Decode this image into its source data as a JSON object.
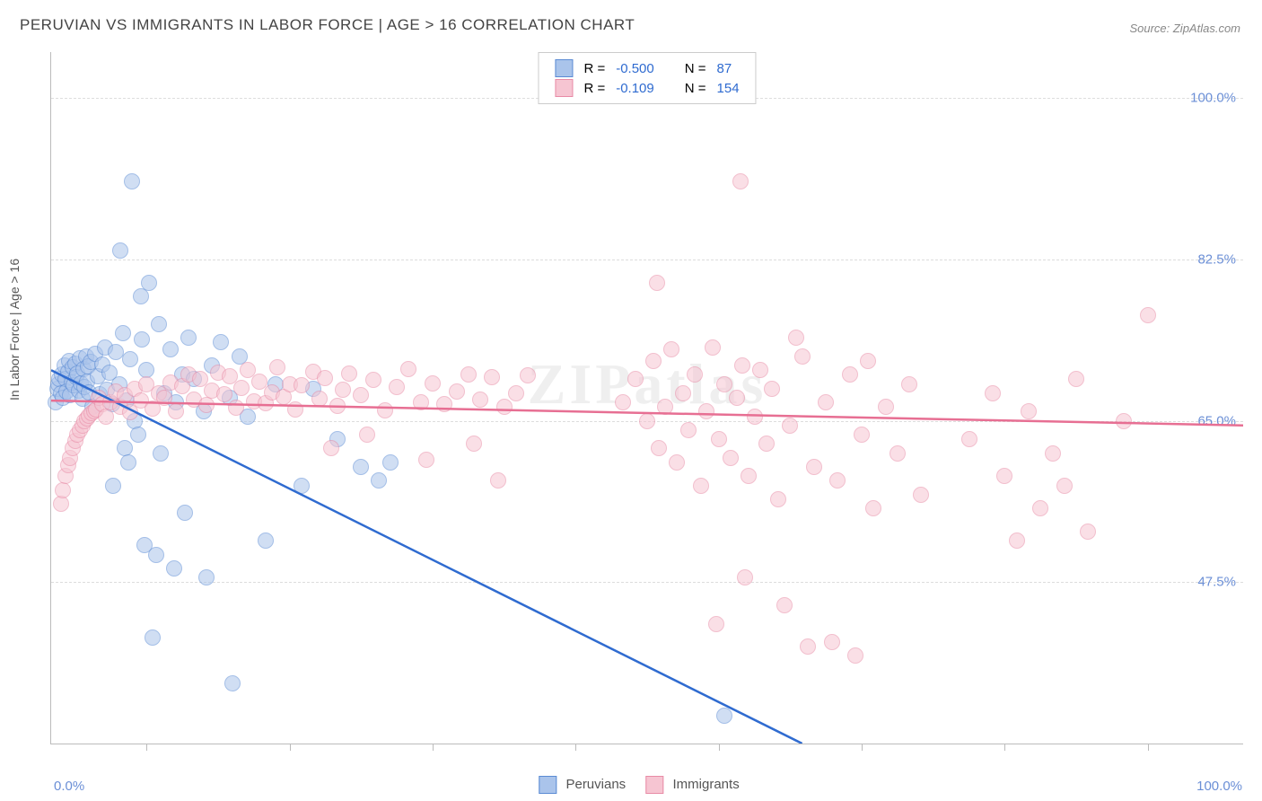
{
  "title": "PERUVIAN VS IMMIGRANTS IN LABOR FORCE | AGE > 16 CORRELATION CHART",
  "source": "Source: ZipAtlas.com",
  "watermark": "ZIPatlas",
  "yaxis_label": "In Labor Force | Age > 16",
  "xaxis": {
    "min_label": "0.0%",
    "max_label": "100.0%"
  },
  "chart": {
    "type": "scatter",
    "xlim": [
      0,
      100
    ],
    "ylim": [
      30,
      105
    ],
    "ytick_values": [
      47.5,
      65.0,
      82.5,
      100.0
    ],
    "ytick_labels": [
      "47.5%",
      "65.0%",
      "82.5%",
      "100.0%"
    ],
    "xtick_values": [
      8,
      20,
      32,
      44,
      56,
      68,
      80,
      92
    ],
    "background_color": "#ffffff",
    "grid_color": "#dddddd",
    "axis_color": "#bbbbbb",
    "tick_label_color": "#6b8fd6",
    "point_radius": 9,
    "point_opacity": 0.55
  },
  "series": [
    {
      "name": "Peruvians",
      "fill_color": "#aac4eb",
      "stroke_color": "#5b8bd4",
      "line_color": "#2f6bd0",
      "R": "-0.500",
      "N": "87",
      "trend": {
        "x1": 0,
        "y1": 70.5,
        "x2": 63,
        "y2": 30
      },
      "points": [
        [
          0.4,
          67
        ],
        [
          0.5,
          68.5
        ],
        [
          0.6,
          69
        ],
        [
          0.7,
          69.5
        ],
        [
          0.8,
          68
        ],
        [
          0.9,
          70
        ],
        [
          1.0,
          67.5
        ],
        [
          1.1,
          71
        ],
        [
          1.2,
          69.5
        ],
        [
          1.3,
          68.2
        ],
        [
          1.4,
          70.3
        ],
        [
          1.5,
          71.5
        ],
        [
          1.6,
          67.8
        ],
        [
          1.7,
          69.2
        ],
        [
          1.8,
          70.8
        ],
        [
          1.9,
          68.9
        ],
        [
          2.0,
          71.2
        ],
        [
          2.1,
          69.7
        ],
        [
          2.2,
          70.1
        ],
        [
          2.3,
          68.3
        ],
        [
          2.4,
          71.8
        ],
        [
          2.5,
          69.1
        ],
        [
          2.6,
          67.4
        ],
        [
          2.7,
          70.6
        ],
        [
          2.8,
          68.7
        ],
        [
          2.9,
          72.0
        ],
        [
          3.0,
          69.3
        ],
        [
          3.1,
          70.9
        ],
        [
          3.2,
          68.1
        ],
        [
          3.3,
          71.4
        ],
        [
          3.5,
          66.5
        ],
        [
          3.7,
          72.3
        ],
        [
          3.9,
          69.8
        ],
        [
          4.1,
          67.9
        ],
        [
          4.3,
          71.1
        ],
        [
          4.5,
          73.0
        ],
        [
          4.7,
          68.4
        ],
        [
          4.9,
          70.2
        ],
        [
          5.1,
          66.8
        ],
        [
          5.4,
          72.5
        ],
        [
          5.7,
          69.0
        ],
        [
          6.0,
          74.5
        ],
        [
          6.3,
          67.2
        ],
        [
          6.6,
          71.7
        ],
        [
          7.0,
          65.0
        ],
        [
          7.3,
          63.5
        ],
        [
          7.6,
          73.8
        ],
        [
          8.0,
          70.5
        ],
        [
          6.2,
          62.0
        ],
        [
          6.5,
          60.5
        ],
        [
          7.5,
          78.5
        ],
        [
          8.2,
          80.0
        ],
        [
          5.8,
          83.5
        ],
        [
          6.8,
          91.0
        ],
        [
          9.0,
          75.5
        ],
        [
          9.5,
          68.0
        ],
        [
          5.2,
          58.0
        ],
        [
          9.2,
          61.5
        ],
        [
          10.0,
          72.8
        ],
        [
          10.5,
          67.0
        ],
        [
          11.0,
          70.0
        ],
        [
          11.5,
          74.0
        ],
        [
          12.0,
          69.5
        ],
        [
          12.8,
          66.0
        ],
        [
          13.5,
          71.0
        ],
        [
          14.2,
          73.5
        ],
        [
          15.0,
          67.5
        ],
        [
          15.8,
          72.0
        ],
        [
          16.5,
          65.5
        ],
        [
          7.8,
          51.5
        ],
        [
          8.8,
          50.5
        ],
        [
          10.3,
          49.0
        ],
        [
          11.2,
          55.0
        ],
        [
          13.0,
          48.0
        ],
        [
          8.5,
          41.5
        ],
        [
          15.2,
          36.5
        ],
        [
          18.0,
          52.0
        ],
        [
          18.8,
          69.0
        ],
        [
          21.0,
          58.0
        ],
        [
          22.0,
          68.5
        ],
        [
          24.0,
          63.0
        ],
        [
          26.0,
          60.0
        ],
        [
          27.5,
          58.5
        ],
        [
          28.5,
          60.5
        ],
        [
          56.5,
          33.0
        ]
      ]
    },
    {
      "name": "Immigrants",
      "fill_color": "#f6c5d2",
      "stroke_color": "#e88ba6",
      "line_color": "#e76f93",
      "R": "-0.109",
      "N": "154",
      "trend": {
        "x1": 0,
        "y1": 67.2,
        "x2": 100,
        "y2": 64.5
      },
      "points": [
        [
          0.8,
          56.0
        ],
        [
          1.0,
          57.5
        ],
        [
          1.2,
          59.0
        ],
        [
          1.4,
          60.2
        ],
        [
          1.6,
          61.0
        ],
        [
          1.8,
          62.0
        ],
        [
          2.0,
          62.8
        ],
        [
          2.2,
          63.5
        ],
        [
          2.4,
          64.0
        ],
        [
          2.6,
          64.5
        ],
        [
          2.8,
          65.0
        ],
        [
          3.0,
          65.3
        ],
        [
          3.2,
          65.6
        ],
        [
          3.4,
          65.8
        ],
        [
          3.6,
          66.0
        ],
        [
          3.8,
          66.2
        ],
        [
          4.0,
          67.5
        ],
        [
          4.3,
          66.8
        ],
        [
          4.6,
          65.5
        ],
        [
          5.0,
          67.0
        ],
        [
          5.4,
          68.2
        ],
        [
          5.8,
          66.5
        ],
        [
          6.2,
          67.8
        ],
        [
          6.6,
          65.9
        ],
        [
          7.0,
          68.5
        ],
        [
          7.5,
          67.2
        ],
        [
          8.0,
          69.0
        ],
        [
          8.5,
          66.3
        ],
        [
          9.0,
          68.0
        ],
        [
          9.5,
          67.5
        ],
        [
          10.0,
          69.2
        ],
        [
          10.5,
          66.0
        ],
        [
          11.0,
          68.8
        ],
        [
          11.5,
          70.0
        ],
        [
          12.0,
          67.3
        ],
        [
          12.5,
          69.5
        ],
        [
          13.0,
          66.7
        ],
        [
          13.5,
          68.3
        ],
        [
          14.0,
          70.2
        ],
        [
          14.5,
          67.9
        ],
        [
          15.0,
          69.8
        ],
        [
          15.5,
          66.4
        ],
        [
          16.0,
          68.6
        ],
        [
          16.5,
          70.5
        ],
        [
          17.0,
          67.1
        ],
        [
          17.5,
          69.3
        ],
        [
          18.0,
          66.9
        ],
        [
          18.5,
          68.1
        ],
        [
          19.0,
          70.8
        ],
        [
          19.5,
          67.6
        ],
        [
          20.0,
          69.0
        ],
        [
          20.5,
          66.2
        ],
        [
          21.0,
          68.9
        ],
        [
          22.0,
          70.3
        ],
        [
          22.5,
          67.4
        ],
        [
          23.0,
          69.6
        ],
        [
          24.0,
          66.6
        ],
        [
          24.5,
          68.4
        ],
        [
          25.0,
          70.1
        ],
        [
          26.0,
          67.8
        ],
        [
          27.0,
          69.4
        ],
        [
          28.0,
          66.1
        ],
        [
          29.0,
          68.7
        ],
        [
          30.0,
          70.6
        ],
        [
          31.0,
          67.0
        ],
        [
          32.0,
          69.1
        ],
        [
          33.0,
          66.8
        ],
        [
          34.0,
          68.2
        ],
        [
          35.0,
          70.0
        ],
        [
          36.0,
          67.3
        ],
        [
          37.0,
          69.7
        ],
        [
          38.0,
          66.5
        ],
        [
          39.0,
          68.0
        ],
        [
          40.0,
          69.9
        ],
        [
          23.5,
          62.0
        ],
        [
          26.5,
          63.5
        ],
        [
          31.5,
          60.8
        ],
        [
          35.5,
          62.5
        ],
        [
          37.5,
          58.5
        ],
        [
          48.0,
          67.0
        ],
        [
          49.0,
          69.5
        ],
        [
          50.0,
          65.0
        ],
        [
          50.5,
          71.5
        ],
        [
          51.0,
          62.0
        ],
        [
          51.5,
          66.5
        ],
        [
          52.0,
          72.8
        ],
        [
          52.5,
          60.5
        ],
        [
          53.0,
          68.0
        ],
        [
          53.5,
          64.0
        ],
        [
          54.0,
          70.0
        ],
        [
          54.5,
          58.0
        ],
        [
          55.0,
          66.0
        ],
        [
          55.5,
          73.0
        ],
        [
          56.0,
          63.0
        ],
        [
          56.5,
          69.0
        ],
        [
          57.0,
          61.0
        ],
        [
          57.5,
          67.5
        ],
        [
          58.0,
          71.0
        ],
        [
          58.5,
          59.0
        ],
        [
          59.0,
          65.5
        ],
        [
          59.5,
          70.5
        ],
        [
          60.0,
          62.5
        ],
        [
          60.5,
          68.5
        ],
        [
          61.0,
          56.5
        ],
        [
          62.0,
          64.5
        ],
        [
          63.0,
          72.0
        ],
        [
          64.0,
          60.0
        ],
        [
          65.0,
          67.0
        ],
        [
          66.0,
          58.5
        ],
        [
          67.0,
          70.0
        ],
        [
          68.0,
          63.5
        ],
        [
          69.0,
          55.5
        ],
        [
          70.0,
          66.5
        ],
        [
          71.0,
          61.5
        ],
        [
          72.0,
          69.0
        ],
        [
          73.0,
          57.0
        ],
        [
          50.8,
          80.0
        ],
        [
          57.8,
          91.0
        ],
        [
          62.5,
          74.0
        ],
        [
          68.5,
          71.5
        ],
        [
          55.8,
          43.0
        ],
        [
          58.2,
          48.0
        ],
        [
          61.5,
          45.0
        ],
        [
          63.5,
          40.5
        ],
        [
          65.5,
          41.0
        ],
        [
          67.5,
          39.5
        ],
        [
          77.0,
          63.0
        ],
        [
          79.0,
          68.0
        ],
        [
          80.0,
          59.0
        ],
        [
          82.0,
          66.0
        ],
        [
          84.0,
          61.5
        ],
        [
          86.0,
          69.5
        ],
        [
          81.0,
          52.0
        ],
        [
          83.0,
          55.5
        ],
        [
          85.0,
          58.0
        ],
        [
          87.0,
          53.0
        ],
        [
          92.0,
          76.5
        ],
        [
          90.0,
          65.0
        ]
      ]
    }
  ],
  "legend_top": {
    "r_label": "R =",
    "n_label": "N ="
  },
  "legend_bottom": {
    "items": [
      "Peruvians",
      "Immigrants"
    ]
  }
}
